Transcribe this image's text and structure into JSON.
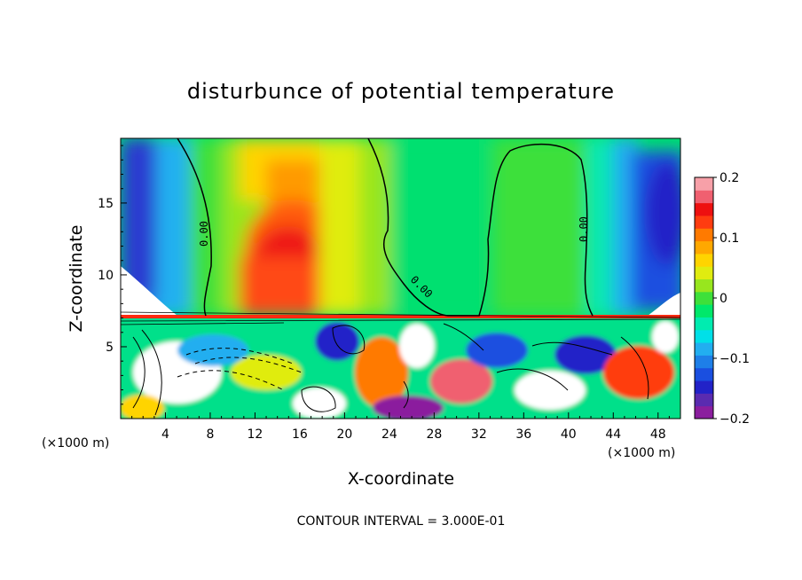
{
  "chart_data": {
    "type": "heatmap",
    "title": "disturbunce of potential temperature",
    "xlabel": "X-coordinate",
    "ylabel": "Z-coordinate",
    "x_unit_label": "(×1000 m)",
    "x_unit_label_right": "(×1000 m)",
    "footer": "CONTOUR INTERVAL = 3.000E-01",
    "xlim": [
      0,
      50
    ],
    "ylim": [
      0,
      19.5
    ],
    "x_ticks": [
      "4",
      "8",
      "12",
      "16",
      "20",
      "24",
      "28",
      "32",
      "36",
      "40",
      "44",
      "48"
    ],
    "y_ticks": [
      "5",
      "10",
      "15"
    ],
    "colorbar": {
      "range": [
        -0.2,
        0.2
      ],
      "ticks": [
        "0.2",
        "0.1",
        "0",
        "−0.1",
        "−0.2"
      ],
      "colors": [
        "#8b1e9e",
        "#5a2bb0",
        "#2222c8",
        "#1a4fe0",
        "#1e7fe8",
        "#22aef0",
        "#00e0e8",
        "#00ecb0",
        "#00e86a",
        "#3ee03a",
        "#98e61e",
        "#e0ec10",
        "#ffd400",
        "#ffa800",
        "#ff7a00",
        "#ff3c10",
        "#ee1010",
        "#f06070",
        "#f7a0a8"
      ]
    },
    "contour_label": "0.00",
    "contour_interval": 0.3,
    "description_fields": {
      "upper_layer_zero_contour_x": [
        7.5,
        22,
        30,
        41,
        42.5
      ],
      "layer_interface_z": 7.2
    }
  }
}
